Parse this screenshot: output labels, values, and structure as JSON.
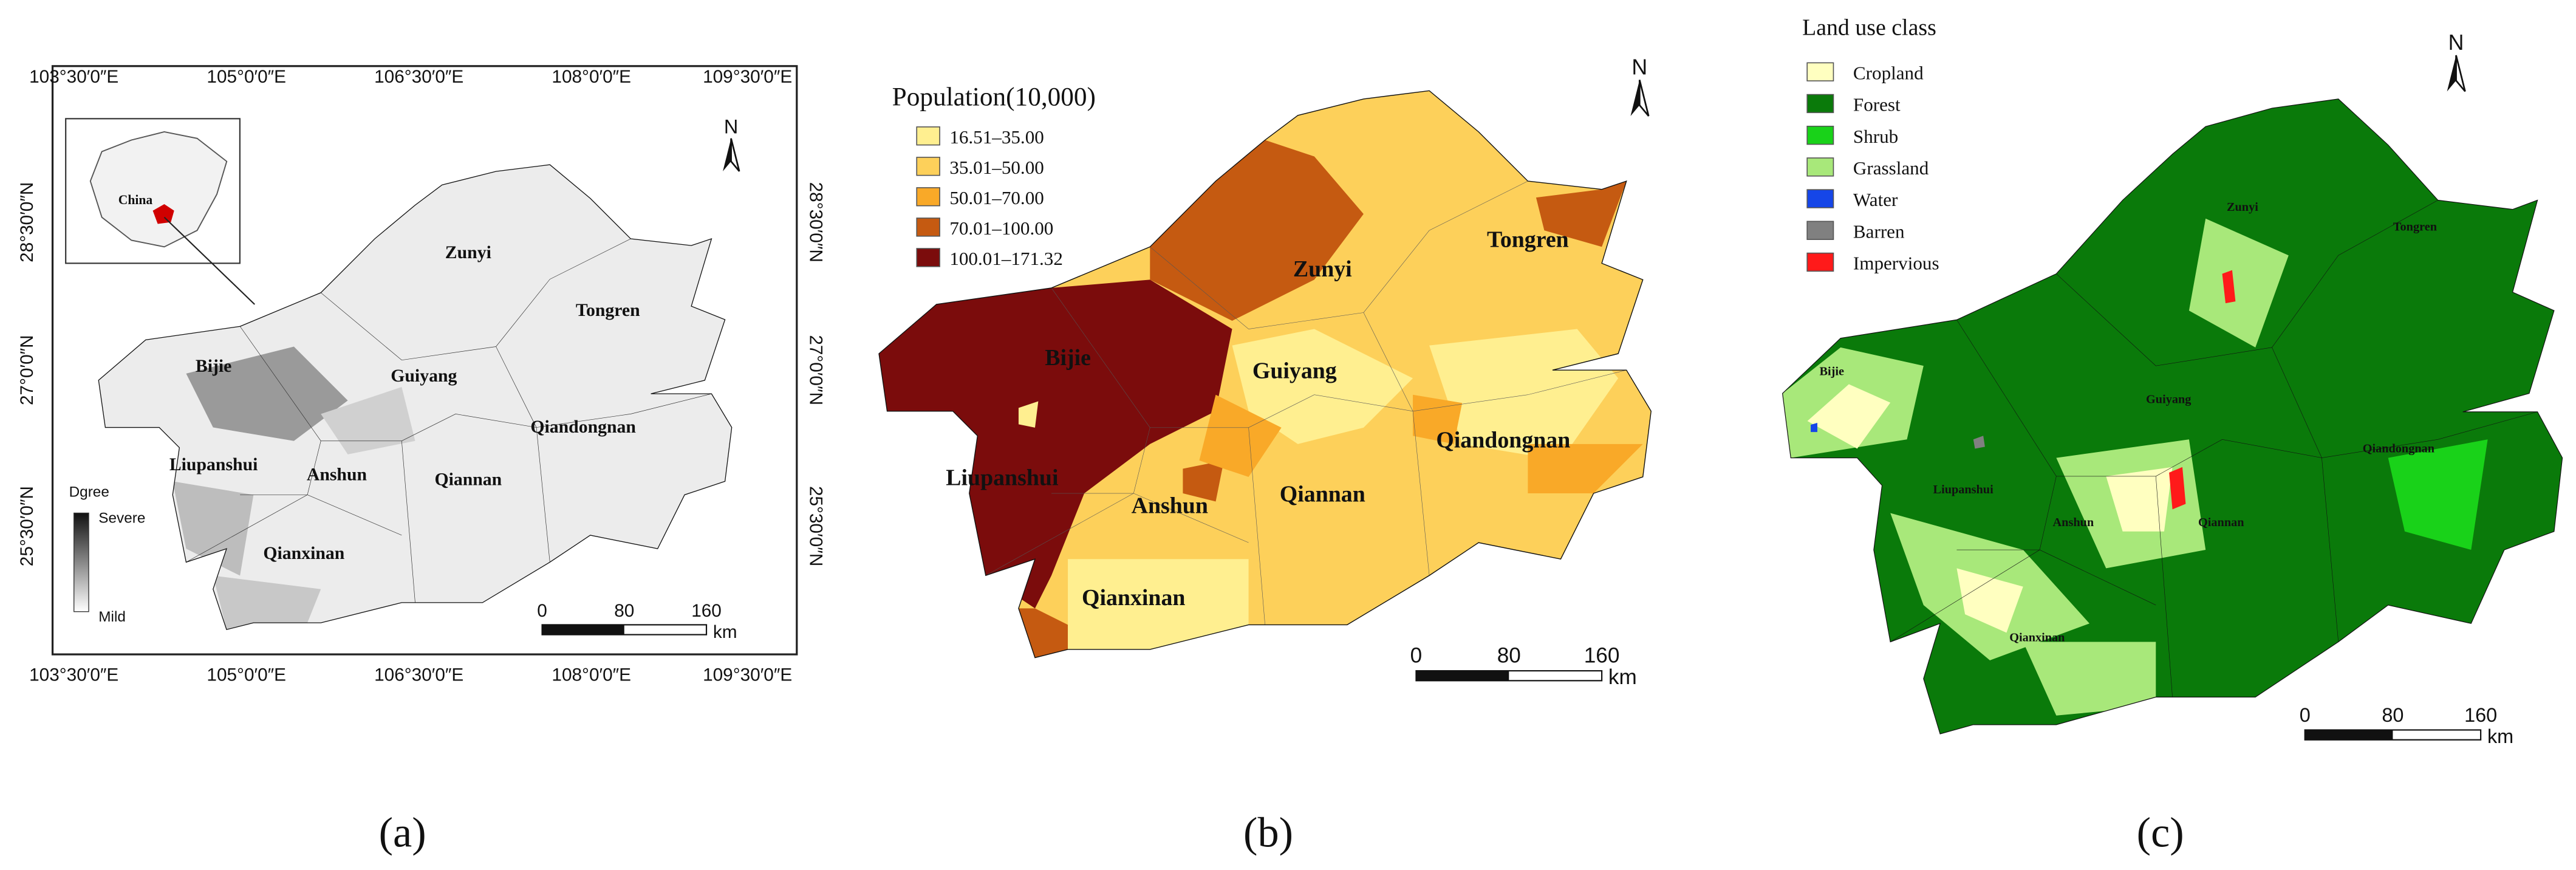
{
  "panels": [
    {
      "label": "(a)",
      "lon_labels": [
        "103°30′0″E",
        "105°0′0″E",
        "106°30′0″E",
        "108°0′0″E",
        "109°30′0″E"
      ],
      "lat_labels": [
        "28°30′0″N",
        "27°0′0″N",
        "25°30′0″N"
      ],
      "inset_label": "China",
      "legend": {
        "title": "Dgree",
        "high": "Severe",
        "low": "Mild"
      },
      "place_names": [
        "Zunyi",
        "Tongren",
        "Bijie",
        "Guiyang",
        "Liupanshui",
        "Anshun",
        "Qiannan",
        "Qiandongnan",
        "Qianxinan"
      ],
      "scale": {
        "ticks": [
          "0",
          "80",
          "160"
        ],
        "unit": "km"
      },
      "north": "N"
    },
    {
      "label": "(b)",
      "legend": {
        "title": "Population(10,000)",
        "classes": [
          {
            "label": "16.51–35.00",
            "color": "#ffef90"
          },
          {
            "label": "35.01–50.00",
            "color": "#fdd05a"
          },
          {
            "label": "50.01–70.00",
            "color": "#f9a928"
          },
          {
            "label": "70.01–100.00",
            "color": "#c55a11"
          },
          {
            "label": "100.01–171.32",
            "color": "#7b0c0c"
          }
        ]
      },
      "place_names": [
        "Zunyi",
        "Tongren",
        "Bijie",
        "Guiyang",
        "Qiandongnan",
        "Liupanshui",
        "Anshun",
        "Qiannan",
        "Qianxinan"
      ],
      "scale": {
        "ticks": [
          "0",
          "80",
          "160"
        ],
        "unit": "km"
      },
      "north": "N"
    },
    {
      "label": "(c)",
      "legend": {
        "title": "Land use class",
        "classes": [
          {
            "label": "Cropland",
            "color": "#ffffc0"
          },
          {
            "label": "Forest",
            "color": "#0a7a0a"
          },
          {
            "label": "Shrub",
            "color": "#19d219"
          },
          {
            "label": "Grassland",
            "color": "#a8e87a"
          },
          {
            "label": "Water",
            "color": "#1646e8"
          },
          {
            "label": "Barren",
            "color": "#808080"
          },
          {
            "label": "Impervious",
            "color": "#ff1a1a"
          }
        ]
      },
      "place_names": [
        "Zunyi",
        "Tongren",
        "Bijie",
        "Guiyang",
        "Qiandongnan",
        "Liupanshui",
        "Anshun",
        "Qiannan",
        "Qianxinan"
      ],
      "scale": {
        "ticks": [
          "0",
          "80",
          "160"
        ],
        "unit": "km"
      },
      "north": "N"
    }
  ]
}
